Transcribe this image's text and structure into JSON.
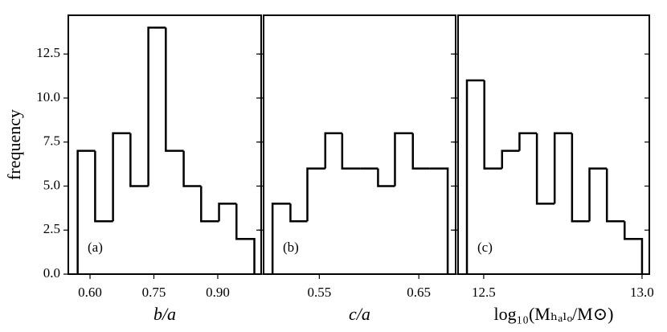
{
  "chart_data": [
    {
      "type": "histogram",
      "annotation": "(a)",
      "xlabel": "b/a",
      "ylabel": "frequency",
      "bins": [
        0.571,
        0.612,
        0.654,
        0.695,
        0.737,
        0.778,
        0.82,
        0.861,
        0.903,
        0.944,
        0.986
      ],
      "values": [
        7,
        3,
        8,
        5,
        14,
        7,
        5,
        3,
        4,
        2
      ],
      "xlim": [
        0.549,
        1.002
      ],
      "xticks": [
        {
          "value": 0.6,
          "label": "0.60"
        },
        0.75,
        {
          "value": 0.9,
          "label": "0.90"
        }
      ],
      "ylim": [
        0,
        14.7
      ],
      "yticks": [
        {
          "value": 0,
          "label": "0.0"
        },
        2.5,
        {
          "value": 5,
          "label": "5.0"
        },
        7.5,
        {
          "value": 10,
          "label": "10.0"
        },
        12.5
      ],
      "color": "#000000"
    },
    {
      "type": "histogram",
      "annotation": "(b)",
      "xlabel": "c/a",
      "bins": [
        0.503,
        0.521,
        0.538,
        0.556,
        0.573,
        0.591,
        0.609,
        0.626,
        0.644,
        0.661,
        0.679
      ],
      "values": [
        4,
        3,
        6,
        8,
        6,
        6,
        5,
        8,
        6,
        6
      ],
      "xlim": [
        0.494,
        0.687
      ],
      "xticks": [
        0.55,
        0.65
      ],
      "ylim": [
        0,
        14.7
      ],
      "color": "#000000"
    },
    {
      "type": "histogram",
      "annotation": "(c)",
      "xlabel": "log₁₀(Mₕₐₗₒ/M⊙)",
      "bins": [
        12.447,
        12.502,
        12.558,
        12.613,
        12.668,
        12.724,
        12.779,
        12.834,
        12.889,
        12.945,
        13.0
      ],
      "values": [
        11,
        6,
        7,
        8,
        4,
        8,
        3,
        6,
        3,
        2
      ],
      "xlim": [
        12.419,
        13.023
      ],
      "xticks": [
        12.5,
        {
          "value": 13.0,
          "label": "13.0"
        }
      ],
      "ylim": [
        0,
        14.7
      ],
      "color": "#000000"
    }
  ]
}
